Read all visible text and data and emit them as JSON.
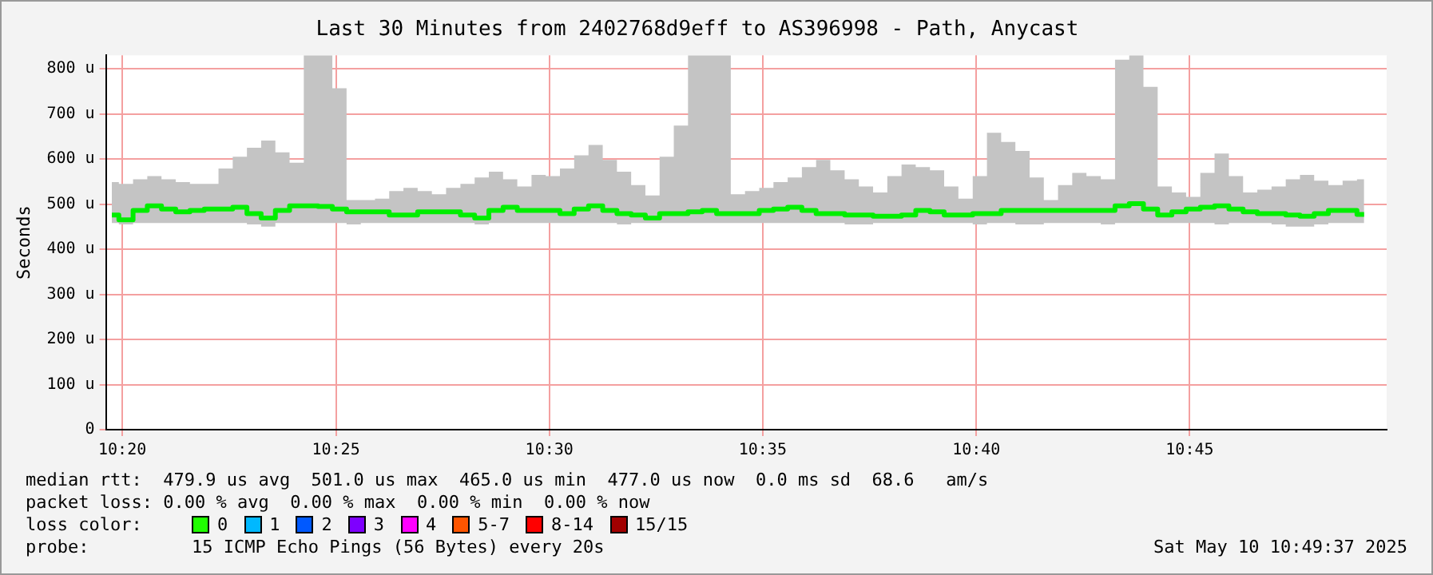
{
  "chart_data": {
    "type": "step",
    "title": "Last 30 Minutes from 2402768d9eff to AS396998 - Path, Anycast",
    "ylabel": "Seconds",
    "x": [
      10.3292,
      10.3347,
      10.3403,
      10.3458,
      10.3514,
      10.3569,
      10.3625,
      10.3681,
      10.3736,
      10.3792,
      10.3847,
      10.3903,
      10.3958,
      10.4014,
      10.4069,
      10.4125,
      10.4181,
      10.4236,
      10.4292,
      10.4347,
      10.4403,
      10.4458,
      10.4514,
      10.4569,
      10.4625,
      10.4681,
      10.4736,
      10.4792,
      10.4847,
      10.4903,
      10.4958,
      10.5014,
      10.5069,
      10.5125,
      10.5181,
      10.5236,
      10.5292,
      10.5347,
      10.5403,
      10.5458,
      10.5514,
      10.5569,
      10.5625,
      10.5681,
      10.5736,
      10.5792,
      10.5847,
      10.5903,
      10.5958,
      10.6014,
      10.6069,
      10.6125,
      10.6181,
      10.6236,
      10.6292,
      10.6347,
      10.6403,
      10.6458,
      10.6514,
      10.6569,
      10.6625,
      10.6681,
      10.6736,
      10.6792,
      10.6847,
      10.6903,
      10.6958,
      10.7014,
      10.7069,
      10.7125,
      10.7181,
      10.7236,
      10.7292,
      10.7347,
      10.7403,
      10.7458,
      10.7514,
      10.7569,
      10.7625,
      10.7681,
      10.7736,
      10.7792,
      10.7847,
      10.7903,
      10.7958,
      10.8014,
      10.8069,
      10.8125,
      10.8181
    ],
    "series": [
      {
        "color": "#00ee00",
        "values": [
          476,
          465,
          486,
          496,
          489,
          483,
          486,
          489,
          489,
          493,
          479,
          469,
          486,
          496,
          496,
          495,
          489,
          483,
          483,
          483,
          476,
          476,
          483,
          483,
          483,
          476,
          469,
          486,
          493,
          486,
          486,
          486,
          479,
          489,
          496,
          486,
          479,
          476,
          469,
          479,
          479,
          483,
          486,
          479,
          479,
          479,
          486,
          489,
          493,
          486,
          479,
          479,
          476,
          476,
          473,
          473,
          476,
          486,
          483,
          476,
          476,
          479,
          479,
          486,
          486,
          486,
          486,
          486,
          486,
          486,
          486,
          496,
          501,
          489,
          476,
          483,
          489,
          493,
          496,
          489,
          483,
          479,
          479,
          476,
          473,
          479,
          486,
          486,
          477
        ],
        "upper": [
          549,
          545,
          555,
          562,
          555,
          549,
          545,
          545,
          579,
          605,
          625,
          641,
          615,
          592,
          830,
          830,
          757,
          509,
          509,
          512,
          529,
          536,
          529,
          522,
          536,
          545,
          559,
          572,
          555,
          539,
          565,
          562,
          579,
          608,
          631,
          598,
          572,
          542,
          519,
          605,
          674,
          830,
          830,
          830,
          522,
          529,
          536,
          549,
          559,
          582,
          598,
          575,
          555,
          539,
          526,
          562,
          588,
          582,
          575,
          539,
          512,
          562,
          658,
          638,
          618,
          559,
          509,
          542,
          569,
          562,
          555,
          820,
          830,
          760,
          539,
          526,
          516,
          569,
          612,
          562,
          526,
          532,
          539,
          555,
          565,
          552,
          542,
          552,
          555
        ],
        "lower": [
          458,
          455,
          458,
          458,
          458,
          458,
          458,
          458,
          458,
          458,
          455,
          450,
          458,
          458,
          458,
          458,
          458,
          455,
          458,
          458,
          458,
          458,
          458,
          458,
          458,
          458,
          455,
          458,
          458,
          458,
          458,
          458,
          458,
          458,
          458,
          458,
          455,
          458,
          458,
          458,
          458,
          458,
          458,
          458,
          458,
          458,
          458,
          458,
          458,
          458,
          458,
          458,
          455,
          455,
          458,
          458,
          458,
          458,
          458,
          458,
          458,
          455,
          458,
          458,
          455,
          455,
          458,
          458,
          458,
          458,
          455,
          458,
          458,
          458,
          458,
          458,
          458,
          458,
          455,
          458,
          458,
          458,
          455,
          450,
          450,
          455,
          458,
          458,
          458
        ]
      }
    ],
    "xlim": [
      10.3269,
      10.8269
    ],
    "xticks": [
      {
        "value": 10.3333,
        "label": "10:20"
      },
      {
        "value": 10.4167,
        "label": "10:25"
      },
      {
        "value": 10.5,
        "label": "10:30"
      },
      {
        "value": 10.5833,
        "label": "10:35"
      },
      {
        "value": 10.6667,
        "label": "10:40"
      },
      {
        "value": 10.75,
        "label": "10:45"
      }
    ],
    "ylim": [
      0,
      830
    ],
    "yticks": [
      0,
      {
        "value": 100,
        "label": "100 u"
      },
      {
        "value": 200,
        "label": "200 u"
      },
      {
        "value": 300,
        "label": "300 u"
      },
      {
        "value": 400,
        "label": "400 u"
      },
      {
        "value": 500,
        "label": "500 u"
      },
      {
        "value": 600,
        "label": "600 u"
      },
      {
        "value": 700,
        "label": "700 u"
      },
      {
        "value": 800,
        "label": "800 u"
      }
    ],
    "grid": true,
    "annotations": [
      "median rtt:  479.9 us avg  501.0 us max  465.0 us min  477.0 us now  0.0 ms sd  68.6   am/s",
      "packet loss: 0.00 % avg  0.00 % max  0.00 % min  0.00 % now",
      "loss color:",
      "0",
      "1",
      "2",
      "3",
      "4",
      "5-7",
      "8-14",
      "15/15",
      "probe:",
      "15 ICMP Echo Pings (56 Bytes) every 20s",
      "Sat May 10 10:49:37 2025"
    ]
  }
}
